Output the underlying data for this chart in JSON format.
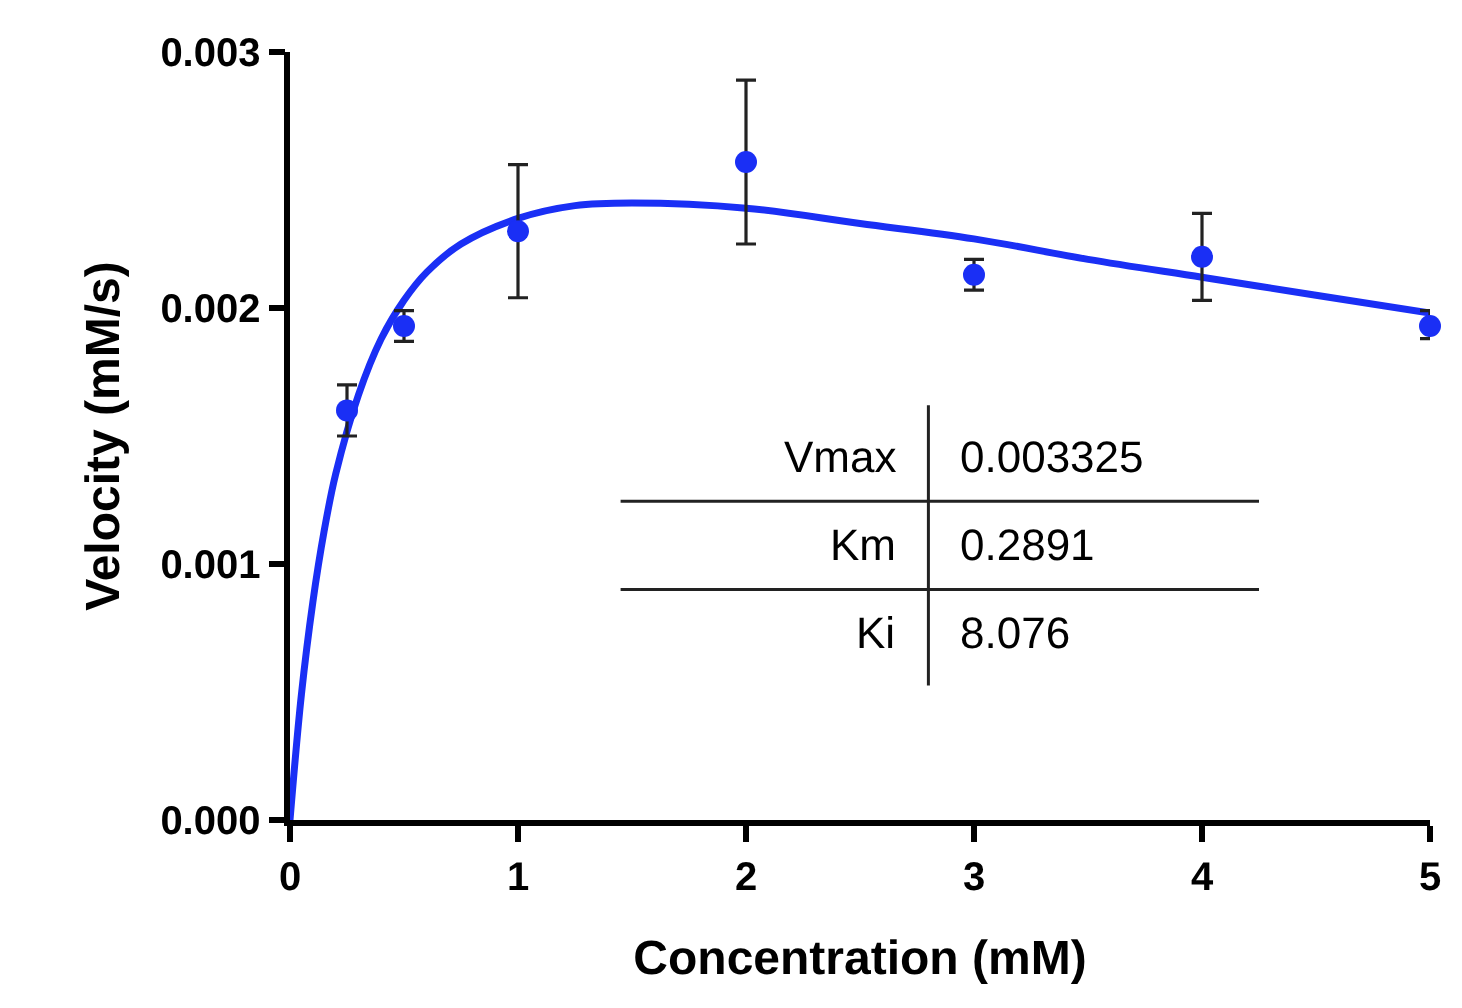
{
  "chart_data": {
    "type": "scatter",
    "xlabel": "Concentration (mM)",
    "ylabel": "Velocity (mM/s)",
    "xlim": [
      0,
      5
    ],
    "xticks": [
      0,
      1,
      2,
      3,
      4,
      5
    ],
    "ylim": [
      0,
      0.003
    ],
    "yticks": [
      {
        "value": 0,
        "label": "0.000"
      },
      {
        "value": 0.001,
        "label": "0.001"
      },
      {
        "value": 0.002,
        "label": "0.002"
      },
      {
        "value": 0.003,
        "label": "0.003"
      }
    ],
    "marker": "circle",
    "series": [
      {
        "type": "line",
        "marker": "none",
        "color": "#1a2ff5",
        "line_style": "solid",
        "x": [
          0,
          0.05,
          0.1,
          0.15,
          0.2,
          0.3,
          0.4,
          0.5,
          0.6,
          0.75,
          1,
          1.25,
          1.5,
          2,
          2.5,
          3,
          3.5,
          4,
          4.5,
          5
        ],
        "values": [
          0,
          0.00049,
          0.00085,
          0.00113,
          0.00135,
          0.00166,
          0.00188,
          0.00203,
          0.00214,
          0.00225,
          0.00235,
          0.0024,
          0.00241,
          0.00239,
          0.00233,
          0.00227,
          0.00219,
          0.00212,
          0.00205,
          0.00198
        ]
      },
      {
        "color": "#1a2ff5",
        "x": [
          0.25,
          0.5,
          1,
          2,
          3,
          4,
          5
        ],
        "values": [
          0.0016,
          0.00193,
          0.0023,
          0.00257,
          0.00213,
          0.0022,
          0.00193
        ],
        "errors": [
          [
            0.0015,
            0.0017
          ],
          [
            0.00187,
            0.00199
          ],
          [
            0.00204,
            0.00256
          ],
          [
            0.00225,
            0.00289
          ],
          [
            0.00207,
            0.00219
          ],
          [
            0.00203,
            0.00237
          ],
          [
            0.00188,
            0.00199
          ]
        ]
      }
    ],
    "annotations": [
      "Vmax",
      "0.003325",
      "Km",
      "0.2891",
      "Ki",
      "8.076"
    ]
  }
}
